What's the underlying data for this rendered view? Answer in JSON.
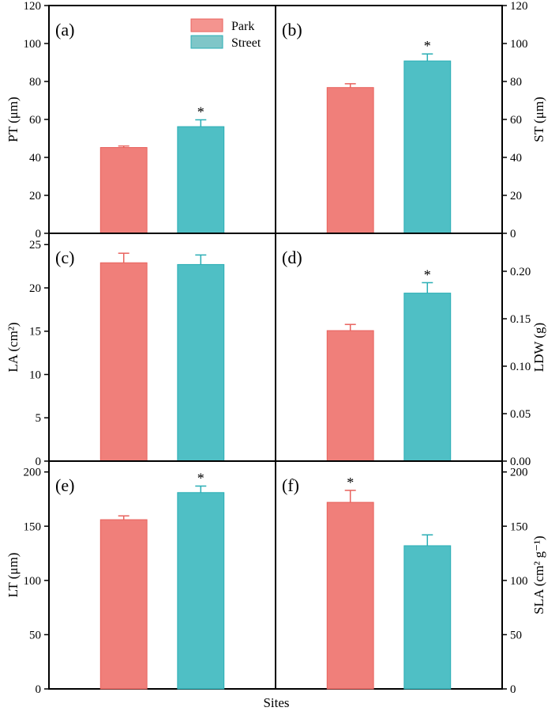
{
  "chart_data": [
    {
      "type": "bar",
      "panel": "(a)",
      "ylabel": "PT (μm)",
      "ylim": [
        0,
        120
      ],
      "ticks": [
        0,
        20,
        40,
        60,
        80,
        100,
        120
      ],
      "axis": "left",
      "series": [
        {
          "name": "Park",
          "value": 45.2,
          "error": 0.8
        },
        {
          "name": "Street",
          "value": 56.2,
          "error": 3.6,
          "sig": "*"
        }
      ]
    },
    {
      "type": "bar",
      "panel": "(b)",
      "ylabel": "ST (μm)",
      "ylim": [
        0,
        120
      ],
      "ticks": [
        0,
        20,
        40,
        60,
        80,
        100,
        120
      ],
      "axis": "right",
      "series": [
        {
          "name": "Park",
          "value": 76.8,
          "error": 2.0
        },
        {
          "name": "Street",
          "value": 90.8,
          "error": 3.7,
          "sig": "*"
        }
      ]
    },
    {
      "type": "bar",
      "panel": "(c)",
      "ylabel": "LA (cm²)",
      "ylim": [
        0,
        26.3
      ],
      "ticks": [
        0,
        5,
        10,
        15,
        20,
        25
      ],
      "axis": "left",
      "series": [
        {
          "name": "Park",
          "value": 22.9,
          "error": 1.1
        },
        {
          "name": "Street",
          "value": 22.7,
          "error": 1.1
        }
      ]
    },
    {
      "type": "bar",
      "panel": "(d)",
      "ylabel": "LDW (g)",
      "ylim": [
        0,
        0.24
      ],
      "ticks": [
        0,
        0.05,
        0.1,
        0.15,
        0.2
      ],
      "tick_decimals": 2,
      "axis": "right",
      "series": [
        {
          "name": "Park",
          "value": 0.1375,
          "error": 0.0065
        },
        {
          "name": "Street",
          "value": 0.177,
          "error": 0.011,
          "sig": "*"
        }
      ]
    },
    {
      "type": "bar",
      "panel": "(e)",
      "ylabel": "LT (μm)",
      "ylim": [
        0,
        210
      ],
      "ticks": [
        0,
        50,
        100,
        150,
        200
      ],
      "axis": "left",
      "series": [
        {
          "name": "Park",
          "value": 156,
          "error": 3.5
        },
        {
          "name": "Street",
          "value": 181,
          "error": 6,
          "sig": "*"
        }
      ]
    },
    {
      "type": "bar",
      "panel": "(f)",
      "ylabel": "SLA (cm² g⁻¹)",
      "ylim": [
        0,
        210
      ],
      "ticks": [
        0,
        50,
        100,
        150,
        200
      ],
      "axis": "right",
      "series": [
        {
          "name": "Park",
          "value": 172,
          "error": 11,
          "sig": "*"
        },
        {
          "name": "Street",
          "value": 132,
          "error": 10
        }
      ]
    }
  ],
  "legend": [
    {
      "name": "Park",
      "color": "#f07f7a"
    },
    {
      "name": "Street",
      "color": "#4fbfc5"
    }
  ],
  "xlabel": "Sites",
  "colors": {
    "Park": "#f07f7a",
    "Street": "#4fbfc5",
    "ParkEdge": "#e8625d",
    "StreetEdge": "#2aaeb5"
  }
}
